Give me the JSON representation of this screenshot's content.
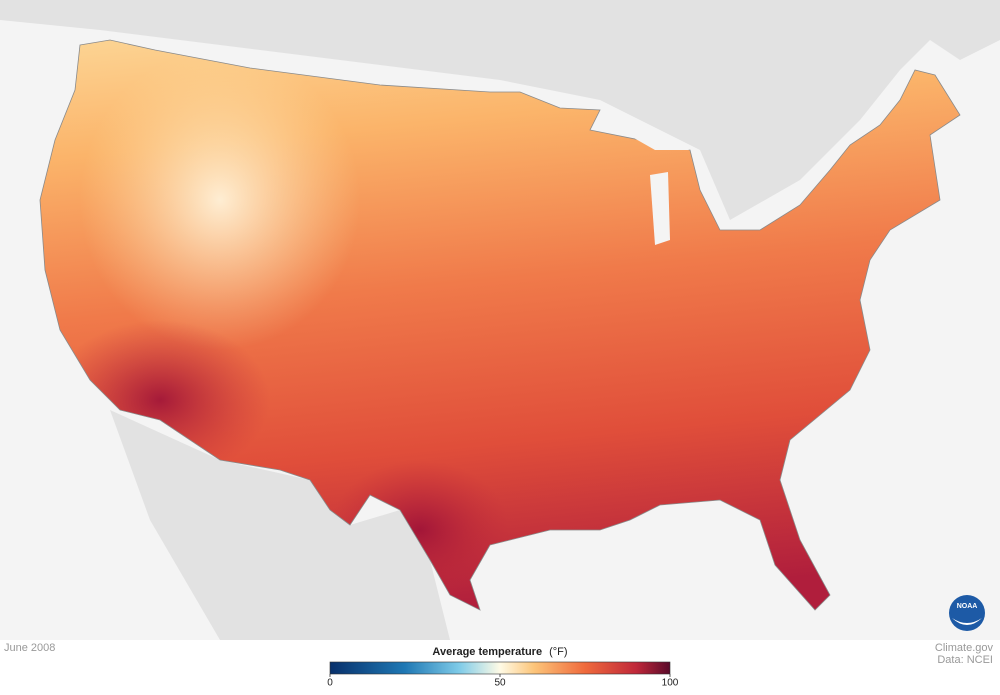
{
  "date": "June 2008",
  "legend": {
    "title": "Average temperature",
    "unit": "(°F)",
    "range": [
      0,
      100
    ],
    "ticks": [
      0,
      50,
      100
    ]
  },
  "credits": [
    "Climate.gov",
    "Data: NCEI"
  ],
  "logo": "NOAA"
}
